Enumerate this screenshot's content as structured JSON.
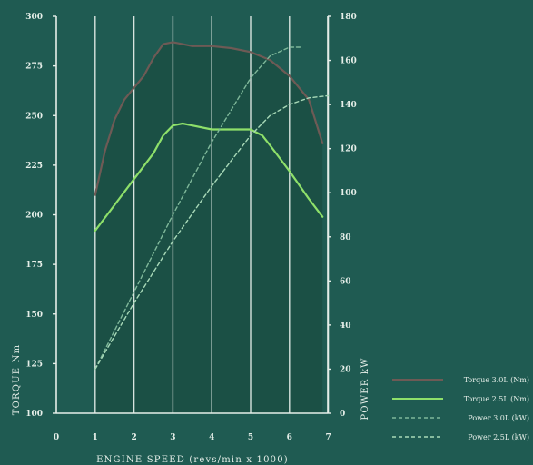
{
  "chart_data": {
    "type": "line",
    "xlabel": "ENGINE SPEED (revs/min x 1000)",
    "ylabel_left": "TORQUE Nm",
    "ylabel_right": "POWER kW",
    "xlim": [
      0,
      7
    ],
    "ylim_left": [
      100,
      300
    ],
    "ylim_right": [
      0,
      180
    ],
    "x_ticks": [
      "0",
      "1",
      "2",
      "3",
      "4",
      "5",
      "6",
      "7"
    ],
    "y_left_ticks": [
      "100",
      "125",
      "150",
      "175",
      "200",
      "225",
      "250",
      "275",
      "300"
    ],
    "y_right_ticks": [
      "0",
      "20",
      "40",
      "60",
      "80",
      "100",
      "120",
      "140",
      "160",
      "180"
    ],
    "grid": "vertical",
    "legend_position": "bottom-right",
    "colors": {
      "background": "#1f5b52",
      "fill": "#1b5045",
      "grid": "#e8f0ec",
      "axis": "#e6efe9",
      "torque_3": "#6e5a55",
      "torque_25": "#8ee06a",
      "power_3": "#7fb89a",
      "power_25": "#a8d9b8"
    },
    "series": [
      {
        "name": "Torque 3.0L (Nm)",
        "axis": "left",
        "color_key": "torque_3",
        "style": "solid",
        "x": [
          1,
          1.25,
          1.5,
          1.75,
          2,
          2.25,
          2.5,
          2.75,
          3,
          3.25,
          3.5,
          4,
          4.5,
          5,
          5.5,
          6,
          6.5,
          6.85
        ],
        "y": [
          210,
          232,
          248,
          258,
          264,
          270,
          279,
          286,
          287,
          286,
          285,
          285,
          284,
          282,
          278,
          270,
          258,
          236
        ]
      },
      {
        "name": "Torque 2.5L (Nm)",
        "axis": "left",
        "color_key": "torque_25",
        "style": "solid",
        "x": [
          1,
          1.5,
          2,
          2.5,
          2.75,
          3,
          3.25,
          3.5,
          4,
          4.5,
          5,
          5.3,
          5.5,
          6,
          6.5,
          6.85
        ],
        "y": [
          192,
          205,
          218,
          231,
          240,
          245,
          246,
          245,
          243,
          243,
          243,
          240,
          235,
          222,
          208,
          199
        ]
      },
      {
        "name": "Power 3.0L (kW)",
        "axis": "right",
        "color_key": "power_3",
        "style": "dashed",
        "x": [
          1,
          2,
          3,
          4,
          5,
          5.5,
          6,
          6.3
        ],
        "y": [
          20,
          55,
          90,
          123,
          152,
          162,
          166,
          166
        ]
      },
      {
        "name": "Power 2.5L (kW)",
        "axis": "right",
        "color_key": "power_25",
        "style": "dashed",
        "x": [
          1,
          2,
          3,
          4,
          5,
          5.5,
          6,
          6.5,
          7
        ],
        "y": [
          20,
          50,
          78,
          103,
          126,
          135,
          140,
          143,
          144
        ]
      }
    ]
  }
}
